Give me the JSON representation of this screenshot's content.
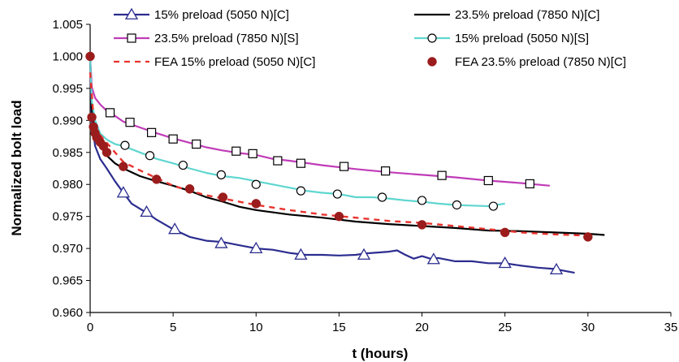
{
  "chart_data": {
    "type": "line",
    "title": "",
    "xlabel": "t (hours)",
    "ylabel": "Normalized bolt load",
    "xlim": [
      0,
      35
    ],
    "ylim": [
      0.96,
      1.005
    ],
    "xticks": [
      "0",
      "5",
      "10",
      "15",
      "20",
      "25",
      "30",
      "35"
    ],
    "yticks": [
      "0.960",
      "0.965",
      "0.970",
      "0.975",
      "0.980",
      "0.985",
      "0.990",
      "0.995",
      "1.000",
      "1.005"
    ],
    "grid": false,
    "legend_position": "top",
    "series": [
      {
        "name": "15% preload (5050 N)[C]",
        "color": "#2b2d8f",
        "style": "solid",
        "marker": "triangle-open",
        "x": [
          0,
          0.1,
          0.3,
          0.6,
          1,
          1.5,
          2,
          2.5,
          3,
          3.5,
          4,
          5,
          6,
          7,
          8,
          9,
          10,
          11,
          12,
          13,
          14,
          15,
          16,
          16.5,
          17,
          18,
          18.5,
          19,
          19.5,
          20,
          20.5,
          21,
          22,
          23,
          24,
          25,
          26,
          27,
          28,
          29.2
        ],
        "values": [
          1.0,
          0.99,
          0.986,
          0.984,
          0.9825,
          0.9805,
          0.9787,
          0.977,
          0.9762,
          0.9754,
          0.9745,
          0.973,
          0.9718,
          0.9712,
          0.971,
          0.9705,
          0.97,
          0.9698,
          0.9693,
          0.969,
          0.969,
          0.9689,
          0.969,
          0.9692,
          0.9693,
          0.9695,
          0.9697,
          0.969,
          0.9684,
          0.9688,
          0.9684,
          0.9685,
          0.968,
          0.968,
          0.9677,
          0.9677,
          0.9673,
          0.967,
          0.9668,
          0.9662
        ],
        "markers_x": [
          2,
          3.4,
          5.1,
          7.9,
          10,
          12.7,
          16.5,
          20.7,
          25,
          28.1
        ],
        "markers_y": [
          0.9787,
          0.9757,
          0.973,
          0.9708,
          0.97,
          0.969,
          0.969,
          0.9683,
          0.9677,
          0.9667
        ]
      },
      {
        "name": "23.5% preload (7850 N)[C]",
        "color": "#000000",
        "style": "solid",
        "marker": "none",
        "x": [
          0,
          0.1,
          0.3,
          0.6,
          1,
          1.5,
          2,
          3,
          4,
          5,
          6,
          7,
          8,
          9,
          10,
          12,
          14,
          16,
          18,
          20,
          22,
          24,
          26,
          28,
          30,
          31
        ],
        "values": [
          1.0,
          0.992,
          0.988,
          0.986,
          0.9845,
          0.9833,
          0.9825,
          0.9813,
          0.9805,
          0.9798,
          0.979,
          0.978,
          0.9773,
          0.9765,
          0.976,
          0.9753,
          0.9748,
          0.9742,
          0.9738,
          0.9735,
          0.9732,
          0.9728,
          0.9727,
          0.9725,
          0.9723,
          0.9721
        ]
      },
      {
        "name": "23.5% preload (7850 N)[S]",
        "color": "#c03cb8",
        "style": "solid",
        "marker": "square-open",
        "x": [
          0,
          0.1,
          0.3,
          0.6,
          1,
          1.5,
          2,
          3,
          4,
          5,
          6,
          7,
          8,
          9,
          10,
          11,
          12,
          14,
          16,
          18,
          20,
          22,
          24,
          26,
          27.7
        ],
        "values": [
          1.0,
          0.9952,
          0.9935,
          0.9925,
          0.9915,
          0.9907,
          0.9898,
          0.9889,
          0.988,
          0.9872,
          0.9865,
          0.9858,
          0.9853,
          0.9849,
          0.9846,
          0.984,
          0.9837,
          0.983,
          0.9824,
          0.9819,
          0.9815,
          0.9811,
          0.9806,
          0.9802,
          0.9798
        ],
        "markers_x": [
          1.2,
          2.4,
          3.7,
          5,
          6.4,
          8.8,
          9.8,
          11.3,
          12.7,
          15.3,
          17.8,
          21.2,
          24,
          26.5
        ],
        "markers_y": [
          0.9912,
          0.9897,
          0.9881,
          0.9871,
          0.9863,
          0.9852,
          0.9848,
          0.9837,
          0.9833,
          0.9828,
          0.9821,
          0.9814,
          0.9806,
          0.9801
        ]
      },
      {
        "name": "15% preload (5050 N)[S]",
        "color": "#5fd6d0",
        "style": "solid",
        "marker": "circle-open",
        "x": [
          0,
          0.1,
          0.3,
          0.6,
          1,
          1.5,
          2,
          3,
          4,
          5,
          6,
          7,
          8,
          9,
          10,
          11,
          12,
          13,
          14,
          15,
          16,
          17,
          18,
          19,
          20,
          21,
          22,
          23,
          24,
          25
        ],
        "values": [
          1.0,
          0.993,
          0.99,
          0.988,
          0.987,
          0.9863,
          0.986,
          0.985,
          0.984,
          0.9833,
          0.9825,
          0.9818,
          0.9813,
          0.981,
          0.9805,
          0.98,
          0.9795,
          0.979,
          0.9787,
          0.9785,
          0.978,
          0.978,
          0.9778,
          0.9775,
          0.9773,
          0.977,
          0.9768,
          0.9767,
          0.9766,
          0.977
        ],
        "markers_x": [
          2.1,
          3.6,
          5.6,
          7.9,
          10,
          12.7,
          14.9,
          17.6,
          20,
          22.1,
          24.3
        ],
        "markers_y": [
          0.9861,
          0.9845,
          0.983,
          0.9815,
          0.98,
          0.979,
          0.9785,
          0.978,
          0.9775,
          0.9768,
          0.9766
        ]
      },
      {
        "name": "FEA 15% preload (5050 N)[C]",
        "color": "#e8332e",
        "style": "dashed",
        "marker": "none",
        "x": [
          0,
          0.2,
          0.5,
          1,
          1.5,
          2,
          3,
          4,
          5,
          6,
          7,
          8,
          10,
          12,
          14,
          16,
          18,
          20,
          22,
          24,
          26,
          28,
          30
        ],
        "values": [
          0.9975,
          0.9905,
          0.988,
          0.9865,
          0.985,
          0.9835,
          0.9822,
          0.981,
          0.9798,
          0.979,
          0.9783,
          0.9778,
          0.9768,
          0.976,
          0.9753,
          0.9748,
          0.9743,
          0.974,
          0.9735,
          0.973,
          0.9725,
          0.9722,
          0.972
        ]
      },
      {
        "name": "FEA 23.5% preload (7850 N)[C]",
        "color": "#9b1c1c",
        "style": "none",
        "marker": "circle-filled",
        "x": [
          0,
          0.1,
          0.2,
          0.3,
          0.4,
          0.6,
          0.8,
          1,
          2,
          4,
          6,
          8,
          10,
          15,
          20,
          25,
          30
        ],
        "values": [
          1.0,
          0.9905,
          0.989,
          0.988,
          0.9873,
          0.9866,
          0.986,
          0.985,
          0.9828,
          0.9808,
          0.9793,
          0.978,
          0.977,
          0.975,
          0.9737,
          0.9725,
          0.9718
        ]
      }
    ]
  }
}
